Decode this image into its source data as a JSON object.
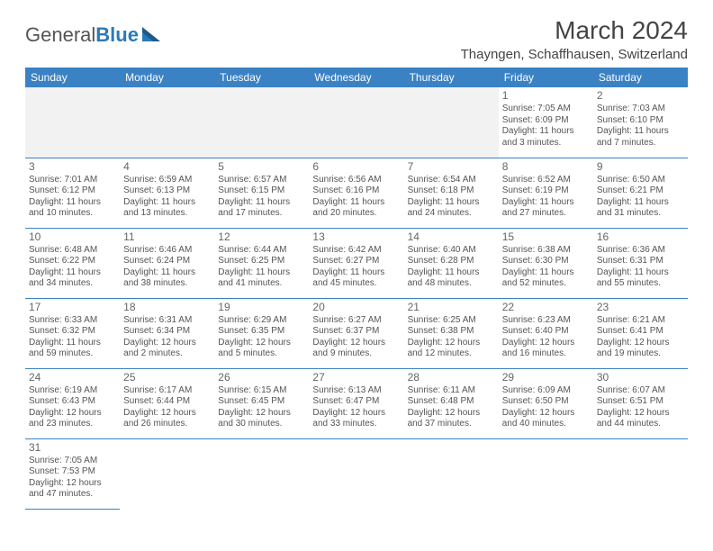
{
  "logo": {
    "text1": "General",
    "text2": "Blue"
  },
  "title": "March 2024",
  "location": "Thayngen, Schaffhausen, Switzerland",
  "colors": {
    "header_bg": "#3a82c4",
    "border": "#3a82c4",
    "logo_blue": "#2a7ab9"
  },
  "weekdays": [
    "Sunday",
    "Monday",
    "Tuesday",
    "Wednesday",
    "Thursday",
    "Friday",
    "Saturday"
  ],
  "weeks": [
    [
      null,
      null,
      null,
      null,
      null,
      {
        "day": "1",
        "sunrise": "Sunrise: 7:05 AM",
        "sunset": "Sunset: 6:09 PM",
        "daylight": "Daylight: 11 hours and 3 minutes."
      },
      {
        "day": "2",
        "sunrise": "Sunrise: 7:03 AM",
        "sunset": "Sunset: 6:10 PM",
        "daylight": "Daylight: 11 hours and 7 minutes."
      }
    ],
    [
      {
        "day": "3",
        "sunrise": "Sunrise: 7:01 AM",
        "sunset": "Sunset: 6:12 PM",
        "daylight": "Daylight: 11 hours and 10 minutes."
      },
      {
        "day": "4",
        "sunrise": "Sunrise: 6:59 AM",
        "sunset": "Sunset: 6:13 PM",
        "daylight": "Daylight: 11 hours and 13 minutes."
      },
      {
        "day": "5",
        "sunrise": "Sunrise: 6:57 AM",
        "sunset": "Sunset: 6:15 PM",
        "daylight": "Daylight: 11 hours and 17 minutes."
      },
      {
        "day": "6",
        "sunrise": "Sunrise: 6:56 AM",
        "sunset": "Sunset: 6:16 PM",
        "daylight": "Daylight: 11 hours and 20 minutes."
      },
      {
        "day": "7",
        "sunrise": "Sunrise: 6:54 AM",
        "sunset": "Sunset: 6:18 PM",
        "daylight": "Daylight: 11 hours and 24 minutes."
      },
      {
        "day": "8",
        "sunrise": "Sunrise: 6:52 AM",
        "sunset": "Sunset: 6:19 PM",
        "daylight": "Daylight: 11 hours and 27 minutes."
      },
      {
        "day": "9",
        "sunrise": "Sunrise: 6:50 AM",
        "sunset": "Sunset: 6:21 PM",
        "daylight": "Daylight: 11 hours and 31 minutes."
      }
    ],
    [
      {
        "day": "10",
        "sunrise": "Sunrise: 6:48 AM",
        "sunset": "Sunset: 6:22 PM",
        "daylight": "Daylight: 11 hours and 34 minutes."
      },
      {
        "day": "11",
        "sunrise": "Sunrise: 6:46 AM",
        "sunset": "Sunset: 6:24 PM",
        "daylight": "Daylight: 11 hours and 38 minutes."
      },
      {
        "day": "12",
        "sunrise": "Sunrise: 6:44 AM",
        "sunset": "Sunset: 6:25 PM",
        "daylight": "Daylight: 11 hours and 41 minutes."
      },
      {
        "day": "13",
        "sunrise": "Sunrise: 6:42 AM",
        "sunset": "Sunset: 6:27 PM",
        "daylight": "Daylight: 11 hours and 45 minutes."
      },
      {
        "day": "14",
        "sunrise": "Sunrise: 6:40 AM",
        "sunset": "Sunset: 6:28 PM",
        "daylight": "Daylight: 11 hours and 48 minutes."
      },
      {
        "day": "15",
        "sunrise": "Sunrise: 6:38 AM",
        "sunset": "Sunset: 6:30 PM",
        "daylight": "Daylight: 11 hours and 52 minutes."
      },
      {
        "day": "16",
        "sunrise": "Sunrise: 6:36 AM",
        "sunset": "Sunset: 6:31 PM",
        "daylight": "Daylight: 11 hours and 55 minutes."
      }
    ],
    [
      {
        "day": "17",
        "sunrise": "Sunrise: 6:33 AM",
        "sunset": "Sunset: 6:32 PM",
        "daylight": "Daylight: 11 hours and 59 minutes."
      },
      {
        "day": "18",
        "sunrise": "Sunrise: 6:31 AM",
        "sunset": "Sunset: 6:34 PM",
        "daylight": "Daylight: 12 hours and 2 minutes."
      },
      {
        "day": "19",
        "sunrise": "Sunrise: 6:29 AM",
        "sunset": "Sunset: 6:35 PM",
        "daylight": "Daylight: 12 hours and 5 minutes."
      },
      {
        "day": "20",
        "sunrise": "Sunrise: 6:27 AM",
        "sunset": "Sunset: 6:37 PM",
        "daylight": "Daylight: 12 hours and 9 minutes."
      },
      {
        "day": "21",
        "sunrise": "Sunrise: 6:25 AM",
        "sunset": "Sunset: 6:38 PM",
        "daylight": "Daylight: 12 hours and 12 minutes."
      },
      {
        "day": "22",
        "sunrise": "Sunrise: 6:23 AM",
        "sunset": "Sunset: 6:40 PM",
        "daylight": "Daylight: 12 hours and 16 minutes."
      },
      {
        "day": "23",
        "sunrise": "Sunrise: 6:21 AM",
        "sunset": "Sunset: 6:41 PM",
        "daylight": "Daylight: 12 hours and 19 minutes."
      }
    ],
    [
      {
        "day": "24",
        "sunrise": "Sunrise: 6:19 AM",
        "sunset": "Sunset: 6:43 PM",
        "daylight": "Daylight: 12 hours and 23 minutes."
      },
      {
        "day": "25",
        "sunrise": "Sunrise: 6:17 AM",
        "sunset": "Sunset: 6:44 PM",
        "daylight": "Daylight: 12 hours and 26 minutes."
      },
      {
        "day": "26",
        "sunrise": "Sunrise: 6:15 AM",
        "sunset": "Sunset: 6:45 PM",
        "daylight": "Daylight: 12 hours and 30 minutes."
      },
      {
        "day": "27",
        "sunrise": "Sunrise: 6:13 AM",
        "sunset": "Sunset: 6:47 PM",
        "daylight": "Daylight: 12 hours and 33 minutes."
      },
      {
        "day": "28",
        "sunrise": "Sunrise: 6:11 AM",
        "sunset": "Sunset: 6:48 PM",
        "daylight": "Daylight: 12 hours and 37 minutes."
      },
      {
        "day": "29",
        "sunrise": "Sunrise: 6:09 AM",
        "sunset": "Sunset: 6:50 PM",
        "daylight": "Daylight: 12 hours and 40 minutes."
      },
      {
        "day": "30",
        "sunrise": "Sunrise: 6:07 AM",
        "sunset": "Sunset: 6:51 PM",
        "daylight": "Daylight: 12 hours and 44 minutes."
      }
    ],
    [
      {
        "day": "31",
        "sunrise": "Sunrise: 7:05 AM",
        "sunset": "Sunset: 7:53 PM",
        "daylight": "Daylight: 12 hours and 47 minutes."
      },
      null,
      null,
      null,
      null,
      null,
      null
    ]
  ]
}
